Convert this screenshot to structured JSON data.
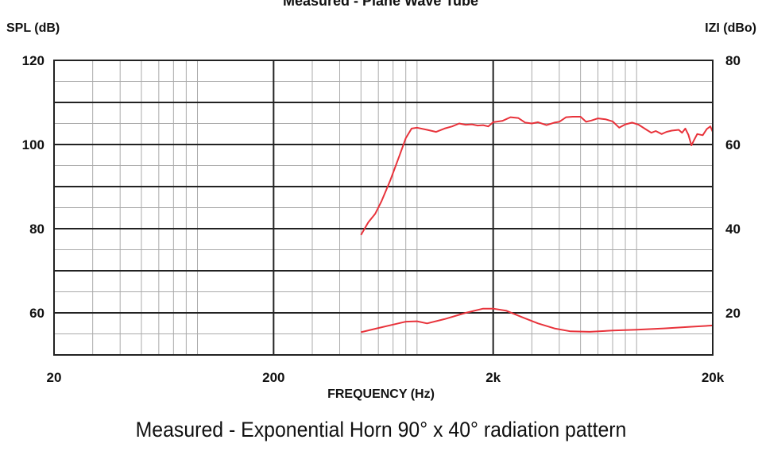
{
  "chart_data": {
    "type": "line",
    "top_title": "Measured - Plane Wave Tube",
    "title": "Measured - Exponential Horn 90° x 40° radiation pattern",
    "xlabel": "FREQUENCY (Hz)",
    "ylabel_left": "SPL (dB)",
    "ylabel_right": "IZI (dBo)",
    "x_scale": "log",
    "xlim": [
      20,
      20000
    ],
    "ylim_left": [
      50,
      120
    ],
    "ylim_right": [
      10,
      80
    ],
    "x_ticks": [
      {
        "value": 20,
        "label": "20"
      },
      {
        "value": 200,
        "label": "200"
      },
      {
        "value": 2000,
        "label": "2k"
      },
      {
        "value": 20000,
        "label": "20k"
      }
    ],
    "y_ticks_left": [
      {
        "value": 120,
        "label": "120"
      },
      {
        "value": 100,
        "label": "100"
      },
      {
        "value": 80,
        "label": "80"
      },
      {
        "value": 60,
        "label": "60"
      }
    ],
    "y_ticks_right": [
      {
        "value": 80,
        "label": "80"
      },
      {
        "value": 60,
        "label": "60"
      },
      {
        "value": 40,
        "label": "40"
      },
      {
        "value": 20,
        "label": "20"
      }
    ],
    "grid": true,
    "line_color": "#e8333b",
    "series": [
      {
        "axis": "left",
        "points": [
          [
            500,
            78.5
          ],
          [
            540,
            81.5
          ],
          [
            580,
            83.5
          ],
          [
            620,
            86.5
          ],
          [
            680,
            91.5
          ],
          [
            750,
            97.5
          ],
          [
            800,
            101.5
          ],
          [
            850,
            103.8
          ],
          [
            900,
            104
          ],
          [
            1000,
            103.5
          ],
          [
            1100,
            103
          ],
          [
            1200,
            103.8
          ],
          [
            1300,
            104.3
          ],
          [
            1400,
            105
          ],
          [
            1500,
            104.7
          ],
          [
            1600,
            104.8
          ],
          [
            1700,
            104.5
          ],
          [
            1800,
            104.6
          ],
          [
            1900,
            104.3
          ],
          [
            2000,
            105.3
          ],
          [
            2200,
            105.6
          ],
          [
            2400,
            106.5
          ],
          [
            2600,
            106.3
          ],
          [
            2800,
            105.2
          ],
          [
            3000,
            105
          ],
          [
            3200,
            105.3
          ],
          [
            3500,
            104.6
          ],
          [
            3800,
            105.2
          ],
          [
            4000,
            105.4
          ],
          [
            4300,
            106.5
          ],
          [
            4600,
            106.6
          ],
          [
            5000,
            106.6
          ],
          [
            5300,
            105.4
          ],
          [
            5600,
            105.7
          ],
          [
            6000,
            106.2
          ],
          [
            6500,
            106
          ],
          [
            7000,
            105.5
          ],
          [
            7500,
            104
          ],
          [
            8000,
            104.8
          ],
          [
            8600,
            105.2
          ],
          [
            9200,
            104.7
          ],
          [
            10000,
            103.5
          ],
          [
            10500,
            102.8
          ],
          [
            11000,
            103.2
          ],
          [
            11700,
            102.5
          ],
          [
            12300,
            103
          ],
          [
            13000,
            103.3
          ],
          [
            14000,
            103.5
          ],
          [
            14500,
            102.8
          ],
          [
            15000,
            103.8
          ],
          [
            15500,
            102.3
          ],
          [
            16000,
            99.8
          ],
          [
            16500,
            101.2
          ],
          [
            17000,
            102.5
          ],
          [
            18000,
            102.2
          ],
          [
            18800,
            103.7
          ],
          [
            19500,
            104.3
          ],
          [
            20000,
            103
          ]
        ]
      },
      {
        "axis": "left",
        "points": [
          [
            500,
            55.4
          ],
          [
            600,
            56.4
          ],
          [
            700,
            57.2
          ],
          [
            800,
            57.9
          ],
          [
            900,
            58
          ],
          [
            1000,
            57.5
          ],
          [
            1200,
            58.5
          ],
          [
            1500,
            60
          ],
          [
            1800,
            61
          ],
          [
            2000,
            61
          ],
          [
            2300,
            60.5
          ],
          [
            2700,
            59
          ],
          [
            3200,
            57.5
          ],
          [
            3800,
            56.3
          ],
          [
            4500,
            55.6
          ],
          [
            5500,
            55.5
          ],
          [
            7000,
            55.8
          ],
          [
            9000,
            56
          ],
          [
            12000,
            56.3
          ],
          [
            16000,
            56.7
          ],
          [
            20000,
            57
          ]
        ]
      }
    ]
  }
}
